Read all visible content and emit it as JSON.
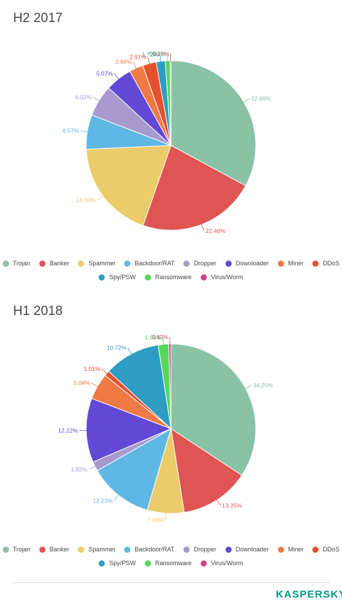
{
  "chart_data": [
    {
      "type": "pie",
      "title": "H2 2017",
      "categories": [
        "Trojan",
        "Banker",
        "Spammer",
        "Backdoor/RAT",
        "Dropper",
        "Downloader",
        "Miner",
        "DDoS",
        "Spy/PSW",
        "Ransomware",
        "Virus/Worm"
      ],
      "values": [
        32.89,
        22.46,
        18.93,
        6.57,
        6.02,
        5.07,
        2.66,
        2.61,
        1.72,
        0.92,
        0.16
      ],
      "labels": [
        "32.89%",
        "22.46%",
        "18.93%",
        "6.57%",
        "6.02%",
        "5.07%",
        "2.66%",
        "2.61%",
        "1.72%",
        "0.92%",
        "0.16%"
      ],
      "colors": [
        "#8ac2a6",
        "#e05454",
        "#eccb6a",
        "#5fb7e3",
        "#a899cf",
        "#6149d6",
        "#ef7a45",
        "#e4512e",
        "#2d9dc4",
        "#58d65a",
        "#cc4489"
      ],
      "legend": "bottom"
    },
    {
      "type": "pie",
      "title": "H1 2018",
      "categories": [
        "Trojan",
        "Banker",
        "Spammer",
        "Backdoor/RAT",
        "Dropper",
        "Downloader",
        "Miner",
        "DDoS",
        "Spy/PSW",
        "Ransomware",
        "Virus/Worm"
      ],
      "values": [
        34.25,
        13.25,
        7.04,
        12.23,
        1.82,
        12.22,
        5.04,
        1.01,
        10.72,
        1.99,
        0.43
      ],
      "labels": [
        "34.25%",
        "13.25%",
        "7.04%",
        "12.23%",
        "1.82%",
        "12.22%",
        "5.04%",
        "1.01%",
        "10.72%",
        "1.99%",
        "0.43%"
      ],
      "colors": [
        "#8ac2a6",
        "#e05454",
        "#eccb6a",
        "#5fb7e3",
        "#a899cf",
        "#6149d6",
        "#ef7a45",
        "#e4512e",
        "#2d9dc4",
        "#58d65a",
        "#cc4489"
      ],
      "legend": "bottom"
    }
  ],
  "legend": {
    "row1": [
      "Trojan",
      "Banker",
      "Spammer",
      "Backdoor/RAT",
      "Dropper",
      "Downloader",
      "Miner",
      "DDoS"
    ],
    "row2": [
      "Spy/PSW",
      "Ransomware",
      "Virus/Worm"
    ]
  },
  "logo": {
    "text": "KASPERSKY",
    "mark": "lab"
  }
}
